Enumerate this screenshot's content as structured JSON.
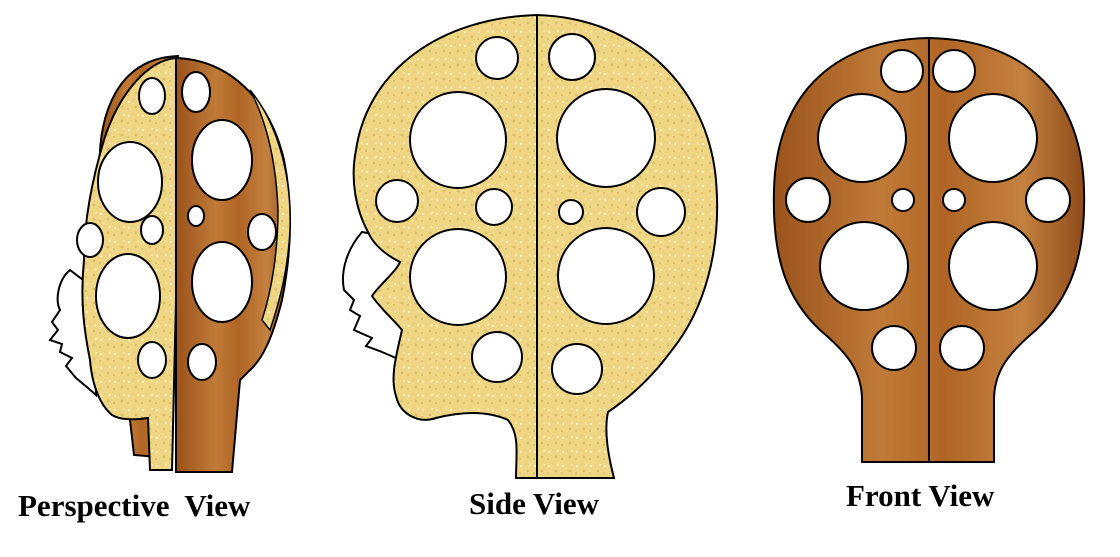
{
  "captions": {
    "perspective": "Perspective  View",
    "side": "Side View",
    "front": "Front View"
  },
  "colors": {
    "wood": "#b56a2a",
    "wood_light": "#c98745",
    "wood_dark": "#8a4a18",
    "foam": "#f0d98a",
    "foam_light": "#f8e9b0",
    "foam_dark": "#d9bf66",
    "outline": "#000000",
    "face": "#ffffff"
  }
}
